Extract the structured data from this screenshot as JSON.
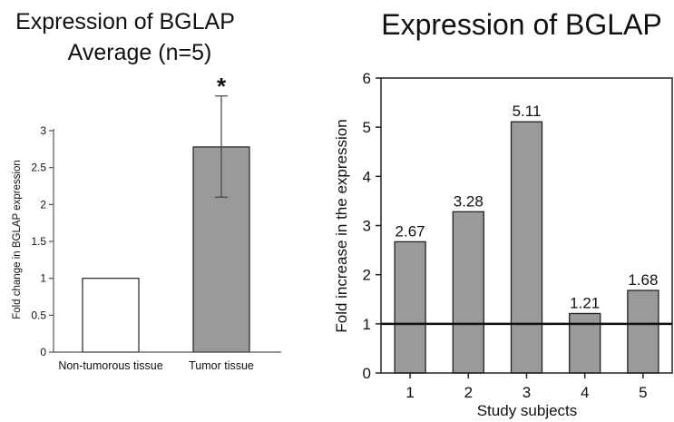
{
  "chart_data": [
    {
      "type": "bar",
      "title": "Expression of BGLAP",
      "subtitle": "Average (n=5)",
      "xlabel": "",
      "ylabel": "Fold change in BGLAP expression",
      "ylim": [
        0,
        3
      ],
      "yticks": [
        "0",
        "0.5",
        "1",
        "1.5",
        "2",
        "2.5",
        "3"
      ],
      "grid": false,
      "categories": [
        "Non-tumorous tissue",
        "Tumor tissue"
      ],
      "values": [
        1.0,
        2.78
      ],
      "error_bars": [
        {
          "low": 1.0,
          "high": 1.0
        },
        {
          "low": 2.1,
          "high": 3.47
        }
      ],
      "bar_colors": [
        "#ffffff",
        "#9a9a9a"
      ],
      "annotations": [
        {
          "category": "Tumor tissue",
          "text": "*"
        }
      ]
    },
    {
      "type": "bar",
      "title": "Expression of BGLAP",
      "xlabel": "Study subjects",
      "ylabel": "Fold increase in the expression",
      "ylim": [
        0,
        6
      ],
      "yticks": [
        "0",
        "1",
        "2",
        "3",
        "4",
        "5",
        "6"
      ],
      "grid": false,
      "categories": [
        "1",
        "2",
        "3",
        "4",
        "5"
      ],
      "values": [
        2.67,
        3.28,
        5.11,
        1.21,
        1.68
      ],
      "data_labels": [
        "2.67",
        "3.28",
        "5.11",
        "1.21",
        "1.68"
      ],
      "reference_line": 1,
      "bar_color": "#9a9a9a"
    }
  ]
}
